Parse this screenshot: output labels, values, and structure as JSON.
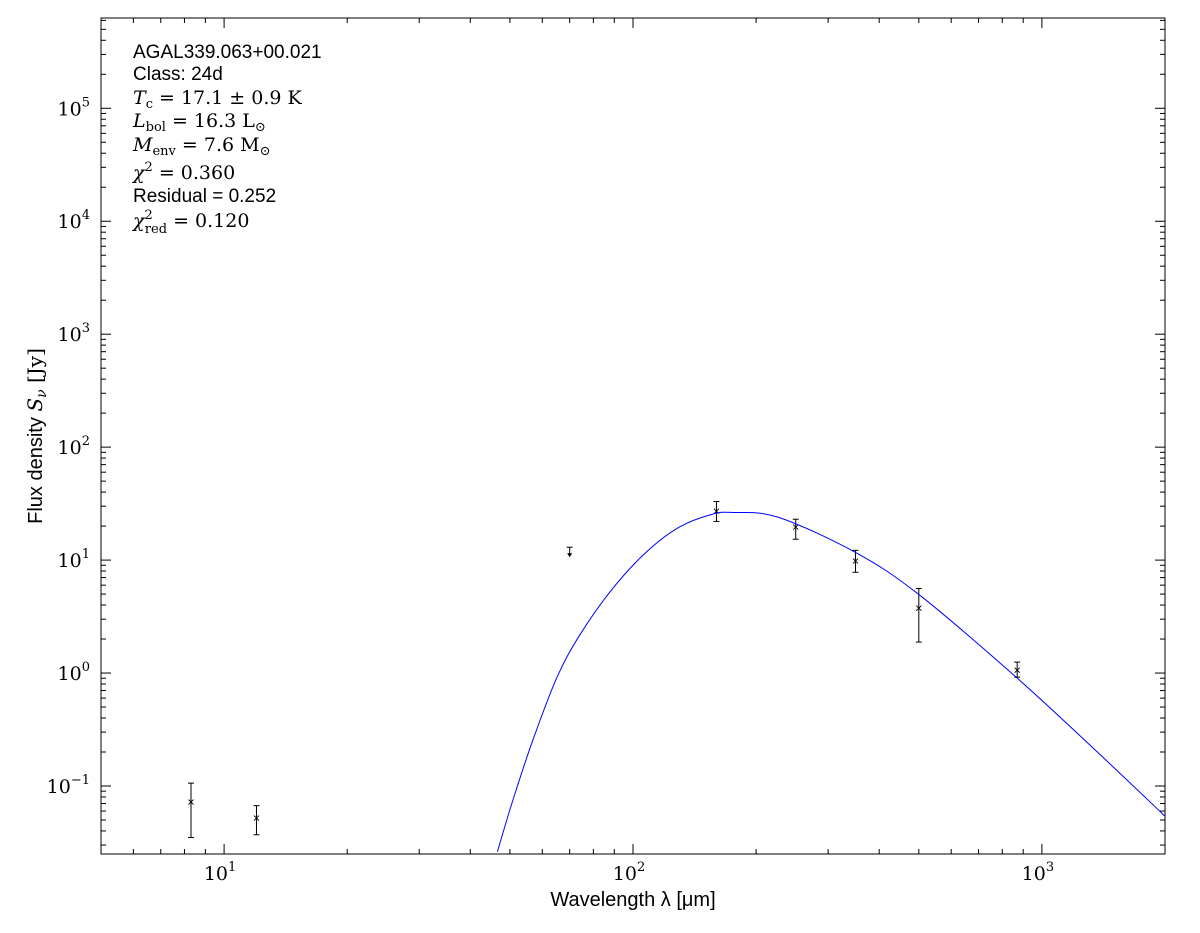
{
  "chart_data": {
    "type": "scatter",
    "xlabel": "Wavelength λ [μm]",
    "ylabel": "Flux density S_ν [Jy]",
    "xscale": "log",
    "yscale": "log",
    "xlim": [
      5,
      2000
    ],
    "ylim": [
      0.025,
      630000
    ],
    "grid": false,
    "x_ticks": [
      10,
      100,
      1000
    ],
    "x_tick_labels": [
      {
        "base": "10",
        "exp": "1"
      },
      {
        "base": "10",
        "exp": "2"
      },
      {
        "base": "10",
        "exp": "3"
      }
    ],
    "y_ticks": [
      0.1,
      1,
      10,
      100,
      1000,
      10000,
      100000
    ],
    "y_tick_labels": [
      {
        "base": "10",
        "exp": "−1"
      },
      {
        "base": "10",
        "exp": "0"
      },
      {
        "base": "10",
        "exp": "1"
      },
      {
        "base": "10",
        "exp": "2"
      },
      {
        "base": "10",
        "exp": "3"
      },
      {
        "base": "10",
        "exp": "4"
      },
      {
        "base": "10",
        "exp": "5"
      }
    ],
    "annotations": [
      [
        {
          "t": "AGAL339.063+00.021",
          "s": "sans"
        }
      ],
      [
        {
          "t": "Class: 24d",
          "s": "sans"
        }
      ],
      [
        {
          "t": "T",
          "s": "i"
        },
        {
          "t": "c",
          "s": "sub"
        },
        {
          "t": " = 17.1 ± 0.9 K",
          "s": "n"
        }
      ],
      [
        {
          "t": "L",
          "s": "i"
        },
        {
          "t": "bol",
          "s": "sub"
        },
        {
          "t": " = 16.3 L",
          "s": "n"
        },
        {
          "t": "⊙",
          "s": "sub"
        }
      ],
      [
        {
          "t": "M",
          "s": "i"
        },
        {
          "t": "env",
          "s": "sub"
        },
        {
          "t": " = 7.6 M",
          "s": "n"
        },
        {
          "t": "⊙",
          "s": "sub"
        }
      ],
      [
        {
          "t": "χ",
          "s": "i"
        },
        {
          "t": "2",
          "s": "sup"
        },
        {
          "t": " = 0.360",
          "s": "n"
        }
      ],
      [
        {
          "t": "Residual = 0.252",
          "s": "sans"
        }
      ],
      [
        {
          "t": "χ",
          "s": "i"
        },
        {
          "t": "2",
          "s": "sup"
        },
        {
          "t": "red",
          "s": "sub2"
        },
        {
          "t": " = 0.120",
          "s": "n"
        }
      ]
    ],
    "series": [
      {
        "type": "errorbar",
        "color": "#000000",
        "marker": "x",
        "points": [
          {
            "x": 8.3,
            "y": 0.072,
            "ylo": 0.035,
            "yhi": 0.106
          },
          {
            "x": 12,
            "y": 0.052,
            "ylo": 0.037,
            "yhi": 0.067
          },
          {
            "x": 70,
            "y": 13,
            "upper_limit": true
          },
          {
            "x": 160,
            "y": 27.1,
            "ylo": 22,
            "yhi": 33
          },
          {
            "x": 250,
            "y": 19.6,
            "ylo": 15.3,
            "yhi": 23
          },
          {
            "x": 350,
            "y": 9.8,
            "ylo": 7.8,
            "yhi": 12.2
          },
          {
            "x": 500,
            "y": 3.75,
            "ylo": 1.88,
            "yhi": 5.6
          },
          {
            "x": 870,
            "y": 1.06,
            "ylo": 0.92,
            "yhi": 1.25
          }
        ]
      },
      {
        "type": "line",
        "color": "#0000ff",
        "x": [
          46.6,
          50.7,
          56.7,
          64.9,
          73.8,
          88.9,
          107.6,
          129.5,
          155.9,
          176.2,
          227,
          350,
          499,
          859,
          1318,
          1950
        ],
        "y": [
          0.0262,
          0.0725,
          0.246,
          0.885,
          2.12,
          5.52,
          11.7,
          19.5,
          25.4,
          26.4,
          23.9,
          11.7,
          4.99,
          0.94,
          0.226,
          0.059
        ]
      }
    ]
  }
}
